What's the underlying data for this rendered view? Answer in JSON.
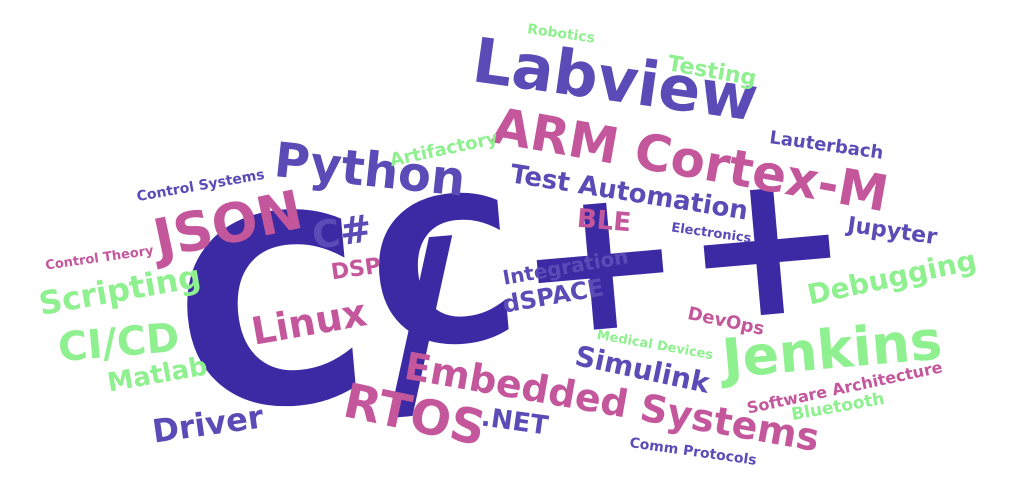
{
  "palette": {
    "indigo": "#3b2aa3",
    "violet": "#5b4bb7",
    "magenta": "#c4579c",
    "mint": "#8ef08f"
  },
  "words": [
    {
      "id": "c",
      "text": "C",
      "color": "indigo"
    },
    {
      "id": "slash",
      "text": "/",
      "color": "indigo"
    },
    {
      "id": "cpp",
      "text": "C++",
      "color": "indigo"
    },
    {
      "id": "labview",
      "text": "Labview",
      "color": "violet"
    },
    {
      "id": "arm",
      "text": "ARM Cortex-M",
      "color": "magenta"
    },
    {
      "id": "python",
      "text": "Python",
      "color": "violet"
    },
    {
      "id": "json",
      "text": "JSON",
      "color": "magenta"
    },
    {
      "id": "csharp",
      "text": "C#",
      "color": "violet"
    },
    {
      "id": "jenkins",
      "text": "Jenkins",
      "color": "mint"
    },
    {
      "id": "embedded",
      "text": "Embedded Systems",
      "color": "magenta"
    },
    {
      "id": "rtos",
      "text": "RTOS",
      "color": "magenta"
    },
    {
      "id": "dotnet",
      "text": ".NET",
      "color": "violet"
    },
    {
      "id": "testauto",
      "text": "Test Automation",
      "color": "violet"
    },
    {
      "id": "scripting",
      "text": "Scripting",
      "color": "mint"
    },
    {
      "id": "cicd",
      "text": "CI/CD",
      "color": "mint"
    },
    {
      "id": "linux",
      "text": "Linux",
      "color": "magenta"
    },
    {
      "id": "driver",
      "text": "Driver",
      "color": "violet"
    },
    {
      "id": "matlab",
      "text": "Matlab",
      "color": "mint"
    },
    {
      "id": "debugging",
      "text": "Debugging",
      "color": "mint"
    },
    {
      "id": "simulink",
      "text": "Simulink",
      "color": "violet"
    },
    {
      "id": "ble",
      "text": "BLE",
      "color": "magenta"
    },
    {
      "id": "dsp",
      "text": "DSP",
      "color": "magenta"
    },
    {
      "id": "integration",
      "text": "Integration",
      "color": "violet"
    },
    {
      "id": "dspace",
      "text": "dSPACE",
      "color": "violet"
    },
    {
      "id": "testing",
      "text": "Testing",
      "color": "mint"
    },
    {
      "id": "jupyter",
      "text": "Jupyter",
      "color": "violet"
    },
    {
      "id": "lauterbach",
      "text": "Lauterbach",
      "color": "violet"
    },
    {
      "id": "artifactory",
      "text": "Artifactory",
      "color": "mint"
    },
    {
      "id": "robotics",
      "text": "Robotics",
      "color": "mint"
    },
    {
      "id": "control-systems",
      "text": "Control Systems",
      "color": "violet"
    },
    {
      "id": "control-theory",
      "text": "Control Theory",
      "color": "magenta"
    },
    {
      "id": "electronics",
      "text": "Electronics",
      "color": "violet"
    },
    {
      "id": "devops",
      "text": "DevOps",
      "color": "magenta"
    },
    {
      "id": "medical",
      "text": "Medical Devices",
      "color": "mint"
    },
    {
      "id": "software-arch",
      "text": "Software Architecture",
      "color": "magenta"
    },
    {
      "id": "bluetooth",
      "text": "Bluetooth",
      "color": "mint"
    },
    {
      "id": "comm",
      "text": "Comm Protocols",
      "color": "violet"
    }
  ]
}
